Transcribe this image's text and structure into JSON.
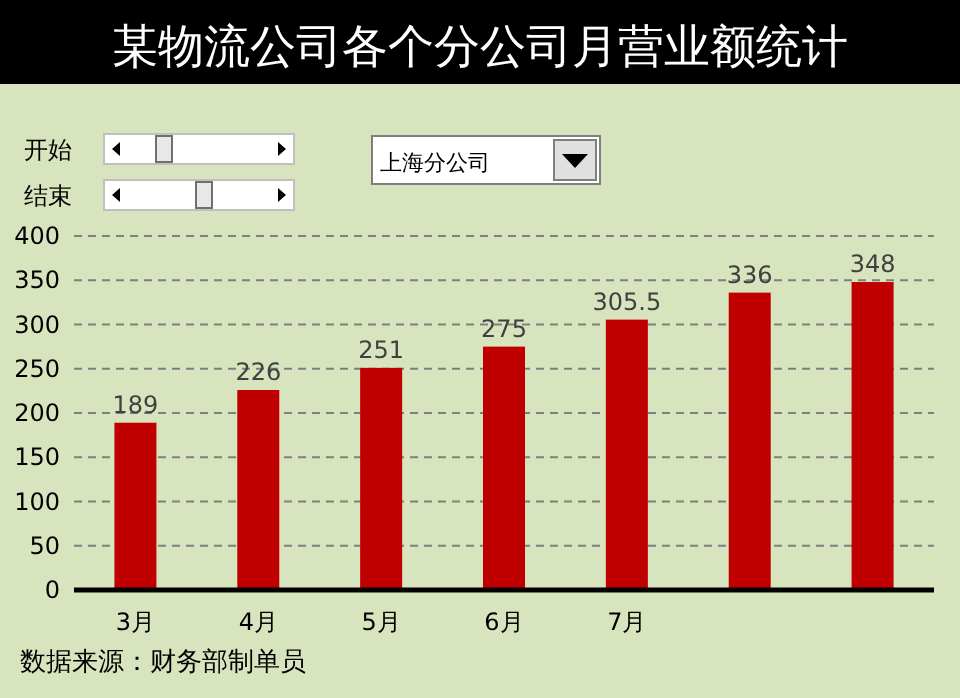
{
  "chart_data": {
    "type": "bar",
    "title": "某物流公司各个分公司月营业额统计",
    "categories": [
      "3月",
      "4月",
      "5月",
      "6月",
      "7月",
      null,
      null
    ],
    "values": [
      189,
      226,
      251,
      275,
      305.5,
      336,
      348
    ],
    "color": "#c00000",
    "ylim": [
      0,
      400
    ],
    "yticks": [
      0,
      50,
      100,
      150,
      200,
      250,
      300,
      350,
      400
    ],
    "grid": "y",
    "data_labels": true,
    "annotations": [
      "开始",
      "结束",
      "上海分公司",
      "数据来源：财务部制单员"
    ]
  }
}
